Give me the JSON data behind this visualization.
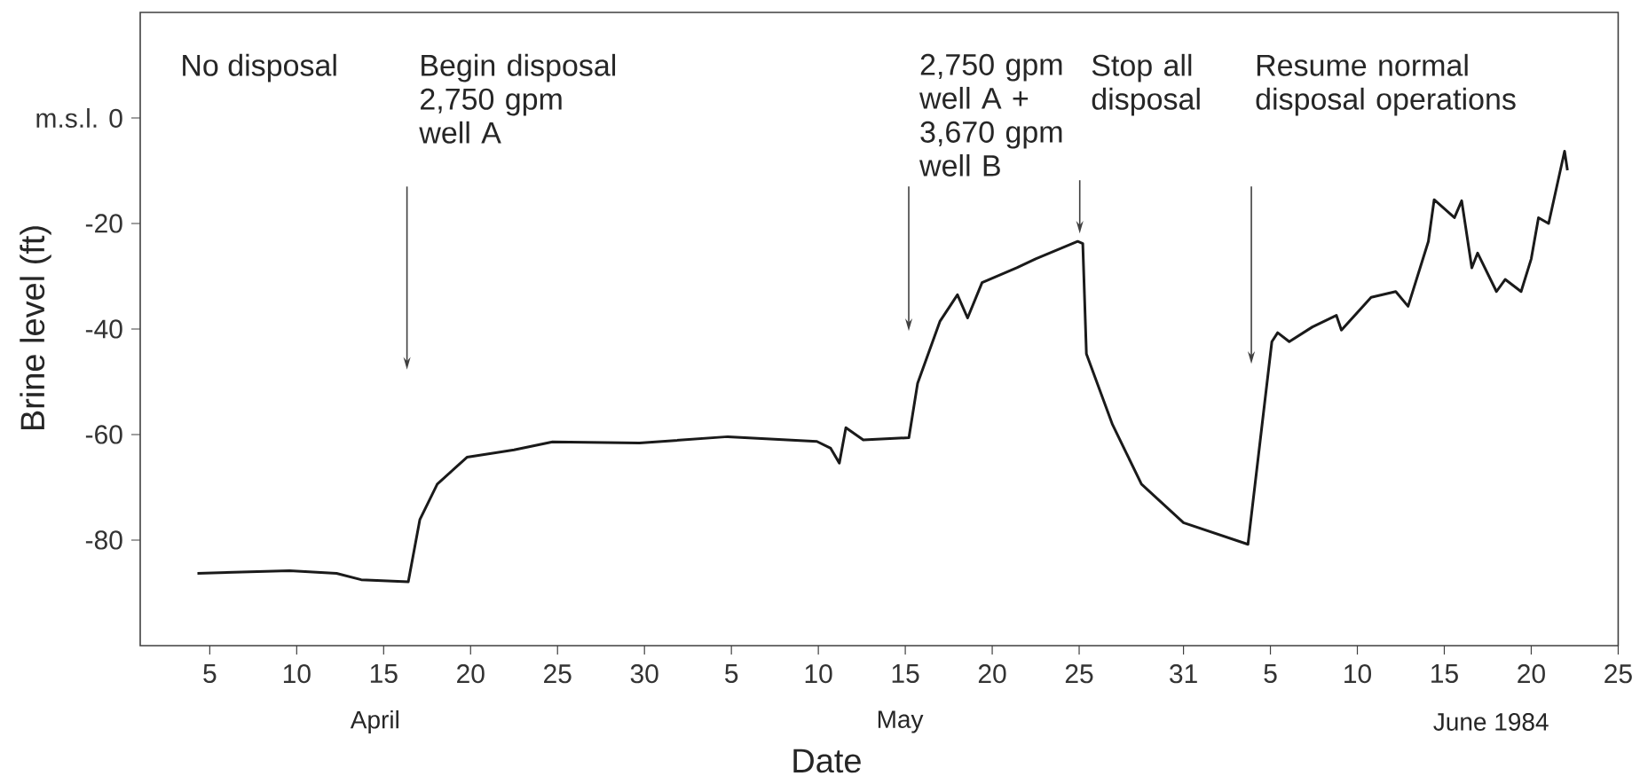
{
  "chart_data": {
    "type": "line",
    "xlabel": "Date",
    "ylabel": "Brine level (ft)",
    "color": "#1a1a1a",
    "xlim": [
      "1984-04-01",
      "1984-06-25"
    ],
    "ylim": [
      -100,
      20
    ],
    "xticks": [
      {
        "value": "1984-04-05",
        "label": "5"
      },
      {
        "value": "1984-04-10",
        "label": "10"
      },
      {
        "value": "1984-04-15",
        "label": "15"
      },
      {
        "value": "1984-04-20",
        "label": "20"
      },
      {
        "value": "1984-04-25",
        "label": "25"
      },
      {
        "value": "1984-04-30",
        "label": "30"
      },
      {
        "value": "1984-05-05",
        "label": "5"
      },
      {
        "value": "1984-05-10",
        "label": "10"
      },
      {
        "value": "1984-05-15",
        "label": "15"
      },
      {
        "value": "1984-05-20",
        "label": "20"
      },
      {
        "value": "1984-05-25",
        "label": "25"
      },
      {
        "value": "1984-05-31",
        "label": "31"
      },
      {
        "value": "1984-06-05",
        "label": "5"
      },
      {
        "value": "1984-06-10",
        "label": "10"
      },
      {
        "value": "1984-06-15",
        "label": "15"
      },
      {
        "value": "1984-06-20",
        "label": "20"
      },
      {
        "value": "1984-06-25",
        "label": "25"
      }
    ],
    "yticks": [
      {
        "value": 0,
        "label": "m.s.l. 0"
      },
      -20,
      -40,
      -60,
      -80
    ],
    "x": [
      "1984-04-04T07:00",
      "1984-04-09T14:00",
      "1984-04-12T07:00",
      "1984-04-13T17:00",
      "1984-04-16T10:00",
      "1984-04-17T02:00",
      "1984-04-18T02:00",
      "1984-04-19T19:00",
      "1984-04-22T12:00",
      "1984-04-24T17:00",
      "1984-04-29T17:00",
      "1984-05-04T19:00",
      "1984-05-09T22:00",
      "1984-05-10T17:00",
      "1984-05-11T05:00",
      "1984-05-11T14:00",
      "1984-05-12T14:00",
      "1984-05-15T05:00",
      "1984-05-15T17:00",
      "1984-05-17T00:00",
      "1984-05-18T00:00",
      "1984-05-18T14:00",
      "1984-05-19T10:00",
      "1984-05-21T10:00",
      "1984-05-22T12:00",
      "1984-05-24T22:00",
      "1984-05-25T05:00",
      "1984-05-25T10:00",
      "1984-05-26T22:00",
      "1984-05-28T14:00",
      "1984-05-31T00:00",
      "1984-06-03T17:00",
      "1984-06-05T02:00",
      "1984-06-05T10:00",
      "1984-06-06T02:00",
      "1984-06-07T10:00",
      "1984-06-08T19:00",
      "1984-06-09T02:00",
      "1984-06-10T19:00",
      "1984-06-12T05:00",
      "1984-06-12T22:00",
      "1984-06-14T02:00",
      "1984-06-14T10:00",
      "1984-06-15T14:00",
      "1984-06-16T00:00",
      "1984-06-16T14:00",
      "1984-06-16T22:00",
      "1984-06-18T00:00",
      "1984-06-18T12:00",
      "1984-06-19T10:00",
      "1984-06-20T00:00",
      "1984-06-20T10:00",
      "1984-06-21T00:00",
      "1984-06-21T22:00",
      "1984-06-22T02:00"
    ],
    "values": [
      -86.3,
      -85.8,
      -86.3,
      -87.5,
      -87.9,
      -76.1,
      -69.4,
      -64.3,
      -62.9,
      -61.4,
      -61.6,
      -60.4,
      -61.3,
      -62.6,
      -65.4,
      -58.7,
      -61.0,
      -60.6,
      -50.3,
      -38.5,
      -33.5,
      -37.9,
      -31.2,
      -28.4,
      -26.7,
      -23.4,
      -23.8,
      -44.7,
      -58.1,
      -69.4,
      -76.7,
      -80.8,
      -42.4,
      -40.7,
      -42.4,
      -39.6,
      -37.4,
      -40.2,
      -34.0,
      -32.9,
      -35.7,
      -23.4,
      -15.5,
      -18.9,
      -15.7,
      -28.4,
      -25.6,
      -32.9,
      -30.6,
      -32.9,
      -26.7,
      -18.9,
      -20.0,
      -6.3,
      -9.9
    ],
    "annotations": [
      "No disposal",
      "Begin disposal 2,750 gpm well A",
      "2,750 gpm well A + 3,670 gpm well B",
      "Stop all disposal",
      "Resume normal disposal operations",
      "April",
      "May",
      "June 1984"
    ]
  }
}
